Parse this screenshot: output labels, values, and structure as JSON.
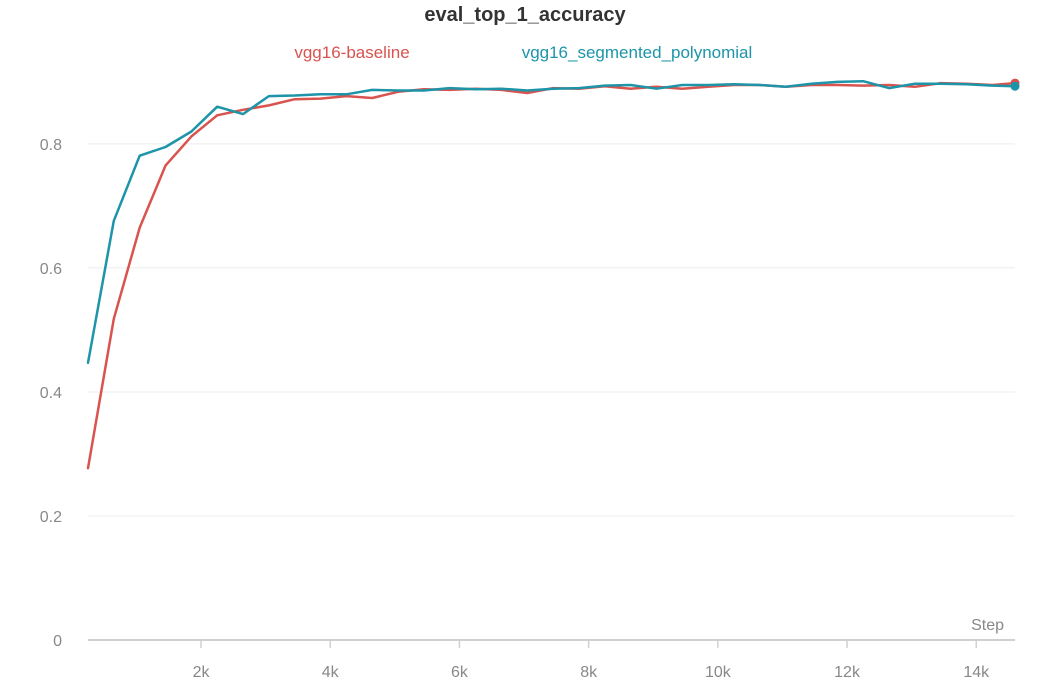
{
  "chart_data": {
    "type": "line",
    "title": "eval_top_1_accuracy",
    "xlabel": "Step",
    "ylabel": "",
    "xlim": [
      250,
      14600
    ],
    "ylim": [
      0,
      1
    ],
    "x_ticks": [
      2000,
      4000,
      6000,
      8000,
      10000,
      12000,
      14000
    ],
    "x_tick_labels": [
      "2k",
      "4k",
      "6k",
      "8k",
      "10k",
      "12k",
      "14k"
    ],
    "y_ticks": [
      0,
      0.2,
      0.4,
      0.6,
      0.8
    ],
    "y_tick_labels": [
      "0",
      "0.2",
      "0.4",
      "0.6",
      "0.8"
    ],
    "grid": true,
    "legend_position": "top",
    "x": [
      250,
      650,
      1050,
      1450,
      1850,
      2250,
      2650,
      3050,
      3450,
      3850,
      4250,
      4650,
      5050,
      5450,
      5850,
      6250,
      6650,
      7050,
      7450,
      7850,
      8250,
      8650,
      9050,
      9450,
      9850,
      10250,
      10650,
      11050,
      11450,
      11850,
      12250,
      12650,
      13050,
      13450,
      13850,
      14250,
      14600
    ],
    "series": [
      {
        "name": "vgg16-baseline",
        "color": "#d9534f",
        "values": [
          0.277,
          0.518,
          0.665,
          0.765,
          0.812,
          0.846,
          0.855,
          0.862,
          0.872,
          0.873,
          0.877,
          0.874,
          0.884,
          0.888,
          0.887,
          0.889,
          0.887,
          0.882,
          0.89,
          0.889,
          0.893,
          0.889,
          0.892,
          0.889,
          0.892,
          0.895,
          0.895,
          0.892,
          0.895,
          0.895,
          0.894,
          0.895,
          0.892,
          0.898,
          0.897,
          0.895,
          0.898
        ]
      },
      {
        "name": "vgg16_segmented_polynomial",
        "color": "#1d94a8",
        "values": [
          0.447,
          0.676,
          0.781,
          0.795,
          0.82,
          0.86,
          0.848,
          0.877,
          0.878,
          0.88,
          0.88,
          0.887,
          0.886,
          0.886,
          0.89,
          0.888,
          0.889,
          0.886,
          0.889,
          0.89,
          0.894,
          0.895,
          0.889,
          0.895,
          0.895,
          0.896,
          0.895,
          0.892,
          0.897,
          0.9,
          0.901,
          0.89,
          0.897,
          0.897,
          0.896,
          0.894,
          0.893
        ]
      }
    ]
  }
}
